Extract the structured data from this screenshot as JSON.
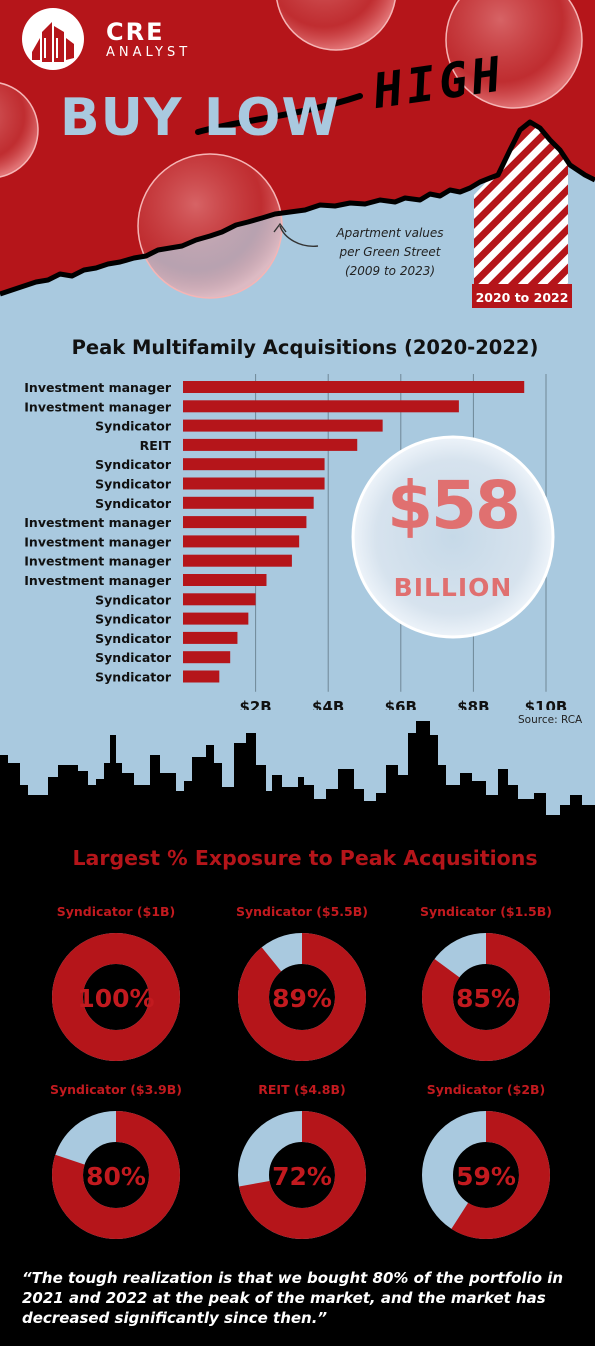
{
  "brand": {
    "name": "CRE",
    "sub": "ANALYST"
  },
  "headline": {
    "buy": "BUY",
    "low": "LOW",
    "high": "HIGH"
  },
  "hero_note": {
    "line1": "Apartment values",
    "line2": "per Green Street",
    "line3": "(2009 to 2023)"
  },
  "period_label": "2020 to 2022",
  "colors": {
    "red": "#b5151a",
    "light_blue": "#a9c9df",
    "black": "#000000",
    "white": "#ffffff"
  },
  "total_callout": {
    "amount": "$58",
    "unit": "BILLION"
  },
  "source": "Source: RCA",
  "chart_data": [
    {
      "type": "bar",
      "orientation": "horizontal",
      "title": "Peak Multifamily Acquisitions (2020-2022)",
      "categories": [
        "Investment manager",
        "Investment manager",
        "Syndicator",
        "REIT",
        "Syndicator",
        "Syndicator",
        "Syndicator",
        "Investment manager",
        "Investment manager",
        "Investment manager",
        "Investment manager",
        "Syndicator",
        "Syndicator",
        "Syndicator",
        "Syndicator",
        "Syndicator"
      ],
      "values": [
        9.4,
        7.6,
        5.5,
        4.8,
        3.9,
        3.9,
        3.6,
        3.4,
        3.2,
        3.0,
        2.3,
        2.0,
        1.8,
        1.5,
        1.3,
        1.0
      ],
      "unit": "$B",
      "xlim": [
        0,
        10
      ],
      "x_ticks": [
        2,
        4,
        6,
        8,
        10
      ],
      "x_tick_labels": [
        "$2B",
        "$4B",
        "$6B",
        "$8B",
        "$10B"
      ],
      "grid": true
    },
    {
      "type": "pie",
      "title": "Largest % Exposure to Peak Acqusitions",
      "items": [
        {
          "label": "Syndicator ($1B)",
          "percent": 100,
          "percent_label": "100%"
        },
        {
          "label": "Syndicator ($5.5B)",
          "percent": 89,
          "percent_label": "89%"
        },
        {
          "label": "Syndicator ($1.5B)",
          "percent": 85,
          "percent_label": "85%"
        },
        {
          "label": "Syndicator ($3.9B)",
          "percent": 80,
          "percent_label": "80%"
        },
        {
          "label": "REIT ($4.8B)",
          "percent": 72,
          "percent_label": "72%"
        },
        {
          "label": "Syndicator ($2B)",
          "percent": 59,
          "percent_label": "59%"
        }
      ]
    }
  ],
  "quote": "“The tough realization is that we bought 80% of the portfolio in 2021 and 2022 at the peak of the market, and the market has decreased significantly since then.”"
}
